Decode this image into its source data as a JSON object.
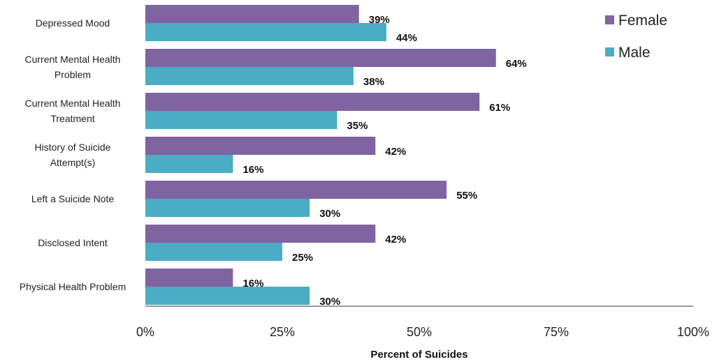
{
  "chart_data": {
    "type": "bar",
    "orientation": "horizontal",
    "categories": [
      [
        "Depressed Mood"
      ],
      [
        "Current Mental Health",
        "Problem"
      ],
      [
        "Current Mental Health",
        "Treatment"
      ],
      [
        "History of Suicide",
        "Attempt(s)"
      ],
      [
        "Left a Suicide Note"
      ],
      [
        "Disclosed Intent"
      ],
      [
        "Physical Health Problem"
      ]
    ],
    "series": [
      {
        "name": "Female",
        "color": "#8064a2",
        "values": [
          39,
          64,
          61,
          42,
          55,
          42,
          16
        ]
      },
      {
        "name": "Male",
        "color": "#4bacc6",
        "values": [
          44,
          38,
          35,
          16,
          30,
          25,
          30
        ]
      }
    ],
    "value_labels": {
      "Female": [
        "39%",
        "64%",
        "61%",
        "42%",
        "55%",
        "42%",
        "16%"
      ],
      "Male": [
        "44%",
        "38%",
        "35%",
        "16%",
        "30%",
        "25%",
        "30%"
      ]
    },
    "xlim": [
      0,
      100
    ],
    "xticks": [
      0,
      25,
      50,
      75,
      100
    ],
    "xtick_labels": [
      "0%",
      "25%",
      "50%",
      "75%",
      "100%"
    ],
    "xlabel": "Percent of Suicides",
    "ylabel": "",
    "title": "",
    "grid": false,
    "legend_position": "top-right"
  }
}
